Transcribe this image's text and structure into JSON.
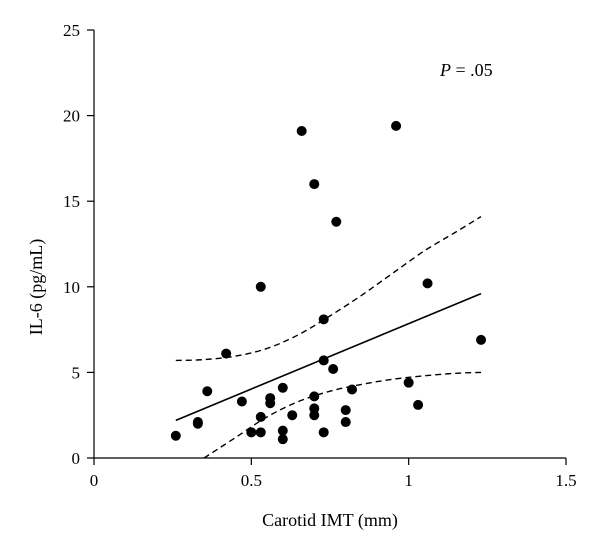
{
  "chart_data": {
    "type": "scatter",
    "title": "",
    "xlabel": "Carotid IMT (mm)",
    "ylabel": "IL-6 (pg/mL)",
    "xlim": [
      0,
      1.5
    ],
    "ylim": [
      0,
      25
    ],
    "xticks": [
      "0",
      "0.5",
      "1",
      "1.5"
    ],
    "yticks": [
      "0",
      "5",
      "10",
      "15",
      "20",
      "25"
    ],
    "annotation": {
      "italic": "P",
      "rest": " = .05"
    },
    "grid": false,
    "points": [
      {
        "x": 0.26,
        "y": 1.3
      },
      {
        "x": 0.33,
        "y": 2.0
      },
      {
        "x": 0.33,
        "y": 2.1
      },
      {
        "x": 0.36,
        "y": 3.9
      },
      {
        "x": 0.42,
        "y": 6.1
      },
      {
        "x": 0.47,
        "y": 3.3
      },
      {
        "x": 0.5,
        "y": 1.5
      },
      {
        "x": 0.53,
        "y": 1.5
      },
      {
        "x": 0.53,
        "y": 2.4
      },
      {
        "x": 0.53,
        "y": 10.0
      },
      {
        "x": 0.56,
        "y": 3.2
      },
      {
        "x": 0.56,
        "y": 3.5
      },
      {
        "x": 0.6,
        "y": 1.1
      },
      {
        "x": 0.6,
        "y": 1.6
      },
      {
        "x": 0.6,
        "y": 4.1
      },
      {
        "x": 0.63,
        "y": 2.5
      },
      {
        "x": 0.66,
        "y": 19.1
      },
      {
        "x": 0.7,
        "y": 16.0
      },
      {
        "x": 0.7,
        "y": 2.5
      },
      {
        "x": 0.7,
        "y": 2.9
      },
      {
        "x": 0.7,
        "y": 3.6
      },
      {
        "x": 0.73,
        "y": 1.5
      },
      {
        "x": 0.73,
        "y": 5.7
      },
      {
        "x": 0.73,
        "y": 8.1
      },
      {
        "x": 0.76,
        "y": 5.2
      },
      {
        "x": 0.77,
        "y": 13.8
      },
      {
        "x": 0.8,
        "y": 2.1
      },
      {
        "x": 0.8,
        "y": 2.8
      },
      {
        "x": 0.82,
        "y": 4.0
      },
      {
        "x": 0.96,
        "y": 19.4
      },
      {
        "x": 1.0,
        "y": 4.4
      },
      {
        "x": 1.03,
        "y": 3.1
      },
      {
        "x": 1.06,
        "y": 10.2
      },
      {
        "x": 1.23,
        "y": 6.9
      }
    ],
    "regression_line": {
      "x": [
        0.26,
        1.23
      ],
      "y": [
        2.2,
        9.6
      ]
    },
    "ci_upper": {
      "x": [
        0.26,
        0.35,
        0.45,
        0.55,
        0.65,
        0.75,
        0.85,
        0.95,
        1.05,
        1.15,
        1.23
      ],
      "y": [
        5.7,
        5.75,
        5.95,
        6.4,
        7.2,
        8.3,
        9.5,
        10.8,
        12.1,
        13.2,
        14.1
      ]
    },
    "ci_lower": {
      "x": [
        0.35,
        0.45,
        0.55,
        0.65,
        0.75,
        0.85,
        0.95,
        1.05,
        1.15,
        1.23
      ],
      "y": [
        0.0,
        1.2,
        2.4,
        3.3,
        3.9,
        4.3,
        4.6,
        4.8,
        4.95,
        5.0
      ]
    }
  }
}
